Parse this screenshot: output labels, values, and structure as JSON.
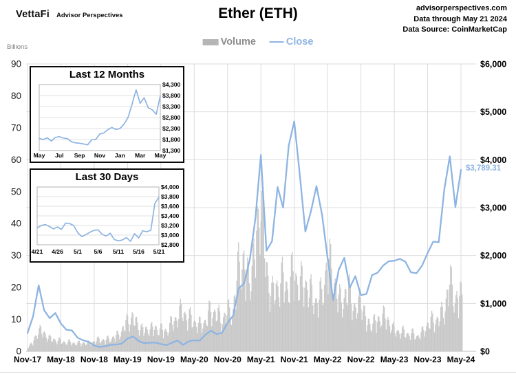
{
  "header": {
    "logo_primary": "VettaFi",
    "logo_secondary": "Advisor Perspectives",
    "title": "Ether (ETH)",
    "source_line1": "advisorperspectives.com",
    "source_line2": "Data through May 21 2024",
    "source_line3": "Data Source: CoinMarketCap"
  },
  "legend": {
    "volume_label": "Volume",
    "close_label": "Close"
  },
  "annotation": {
    "last_price": "$3,789.31"
  },
  "colors": {
    "close_line": "#8db4e2",
    "volume_fill": "#c9c9c9",
    "grid": "#dcdcdc",
    "legend_volume_text": "#8c8c8c",
    "inset_border": "#0a0a0a"
  },
  "chart_data": [
    {
      "id": "main-chart",
      "type": "line+area",
      "title": "Ether (ETH)",
      "x_unit": "month",
      "x_start": "Nov-2017",
      "x_end": "May-2024",
      "x_tick_labels": [
        "Nov-17",
        "May-18",
        "Nov-18",
        "May-19",
        "Nov-19",
        "May-20",
        "Nov-20",
        "May-21",
        "Nov-21",
        "May-22",
        "Nov-22",
        "May-23",
        "Nov-23",
        "May-24"
      ],
      "left_axis": {
        "title": "Billions",
        "min": 0,
        "max": 90,
        "step": 10,
        "tick_labels": [
          "90",
          "80",
          "70",
          "60",
          "50",
          "40",
          "30",
          "20",
          "10",
          "0"
        ]
      },
      "right_axis": {
        "min": 0,
        "max": 6000,
        "step": 1000,
        "tick_labels": [
          "$6,000",
          "$5,000",
          "$4,000",
          "$3,000",
          "$2,000",
          "$1,000",
          "$0"
        ]
      },
      "grid": true,
      "legend_position": "top",
      "annotation": {
        "text": "$3,789.31",
        "value": 3789.31
      },
      "series": [
        {
          "name": "Close",
          "type": "line",
          "axis": "right",
          "color": "#8db4e2",
          "values": [
            380,
            730,
            1380,
            855,
            690,
            800,
            580,
            450,
            435,
            285,
            230,
            200,
            118,
            90,
            107,
            137,
            142,
            162,
            268,
            310,
            215,
            170,
            180,
            182,
            152,
            129,
            180,
            225,
            133,
            210,
            230,
            225,
            345,
            430,
            360,
            385,
            600,
            740,
            1315,
            1420,
            1920,
            2770,
            4100,
            2100,
            2300,
            3430,
            3000,
            4290,
            4800,
            3680,
            2500,
            2920,
            3450,
            2850,
            1940,
            1070,
            1700,
            1950,
            1330,
            1570,
            1170,
            1200,
            1590,
            1640,
            1790,
            1880,
            1890,
            1930,
            1870,
            1650,
            1630,
            1790,
            2050,
            2290,
            2280,
            3380,
            4070,
            3010,
            3789.31
          ]
        },
        {
          "name": "Volume",
          "type": "area",
          "axis": "left",
          "color": "#c9c9c9",
          "values": [
            1.5,
            3.5,
            8.5,
            7,
            5,
            4.5,
            4,
            3.5,
            3.5,
            3,
            3.5,
            3,
            4,
            4.5,
            4.5,
            5,
            6,
            8,
            12,
            13,
            10,
            8,
            9,
            9,
            8.5,
            8,
            11,
            14,
            16,
            13,
            12,
            10,
            12,
            16,
            15,
            12,
            16,
            15,
            35,
            33,
            28,
            40,
            62,
            32,
            22,
            26,
            28,
            25,
            32,
            25,
            28,
            22,
            20,
            22,
            36,
            30,
            20,
            21,
            24,
            15,
            21,
            11,
            11,
            12,
            14,
            12,
            8,
            8,
            7,
            7,
            6,
            7,
            11,
            12,
            13,
            16,
            28,
            20,
            22
          ]
        }
      ]
    },
    {
      "id": "inset-last-12-months",
      "type": "line",
      "title": "Last 12 Months",
      "y_axis": {
        "min": 1300,
        "max": 4300,
        "step": 500,
        "side": "right",
        "tick_labels": [
          "$4,300",
          "$3,800",
          "$3,300",
          "$2,800",
          "$2,300",
          "$1,800",
          "$1,300"
        ]
      },
      "x_tick_labels": [
        "May",
        "Jul",
        "Sep",
        "Nov",
        "Jan",
        "Mar",
        "May"
      ],
      "values": [
        1850,
        1800,
        1880,
        1730,
        1900,
        1930,
        1870,
        1840,
        1700,
        1650,
        1630,
        1600,
        1560,
        1790,
        1810,
        2050,
        2100,
        2250,
        2350,
        2260,
        2300,
        2500,
        2800,
        3400,
        4060,
        3450,
        3700,
        3250,
        3150,
        2950,
        3790
      ]
    },
    {
      "id": "inset-last-30-days",
      "type": "line",
      "title": "Last 30 Days",
      "y_axis": {
        "min": 2800,
        "max": 4000,
        "step": 200,
        "side": "right",
        "tick_labels": [
          "$4,000",
          "$3,800",
          "$3,600",
          "$3,400",
          "$3,200",
          "$3,000",
          "$2,800"
        ]
      },
      "x_tick_labels": [
        "4/21",
        "4/26",
        "5/1",
        "5/6",
        "5/11",
        "5/16",
        "5/21"
      ],
      "values": [
        3150,
        3200,
        3220,
        3180,
        3130,
        3170,
        3120,
        3250,
        3240,
        3200,
        3050,
        2970,
        3010,
        3060,
        3100,
        3110,
        3020,
        2980,
        3040,
        2910,
        2880,
        2900,
        2950,
        2870,
        3030,
        2940,
        3090,
        3070,
        3100,
        3660,
        3790
      ]
    }
  ]
}
